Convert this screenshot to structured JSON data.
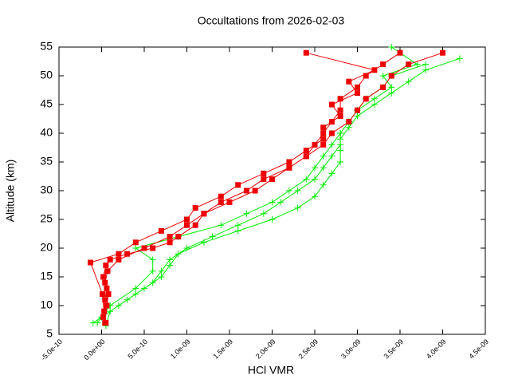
{
  "chart_data": {
    "type": "line",
    "title": "Occultations from 2026-02-03",
    "x_label": "HCl VMR",
    "y_label": "Altitude (km)",
    "xlim": [
      -5e-10,
      4.5e-09
    ],
    "ylim": [
      5,
      55
    ],
    "xticks": [
      {
        "value": -5e-10,
        "label": "-5.0e-10"
      },
      {
        "value": 0,
        "label": "0.0e+00"
      },
      {
        "value": 5e-10,
        "label": "5.0e-10"
      },
      {
        "value": 1e-09,
        "label": "1.0e-09"
      },
      {
        "value": 1.5e-09,
        "label": "1.5e-09"
      },
      {
        "value": 2e-09,
        "label": "2.0e-09"
      },
      {
        "value": 2.5e-09,
        "label": "2.5e-09"
      },
      {
        "value": 3e-09,
        "label": "3.0e-09"
      },
      {
        "value": 3.5e-09,
        "label": "3.5e-09"
      },
      {
        "value": 4e-09,
        "label": "4.0e-09"
      },
      {
        "value": 4.5e-09,
        "label": "4.5e-09"
      }
    ],
    "yticks": [
      5,
      10,
      15,
      20,
      25,
      30,
      35,
      40,
      45,
      50,
      55
    ],
    "series": [
      {
        "color": "#00ee00",
        "marker": "plus",
        "x": [
          -1e-10,
          0,
          2e-10,
          4e-10,
          6e-10,
          7e-10,
          8e-10,
          1e-09,
          1.3e-09,
          1.6e-09,
          1.9e-09,
          2.1e-09,
          2.3e-09,
          2.5e-09,
          2.6e-09,
          2.7e-09,
          2.8e-09,
          2.8e-09,
          2.9e-09,
          3e-09,
          3.1e-09,
          3.3e-09,
          3.4e-09,
          3.8e-09,
          null,
          5e-11,
          1e-10,
          3e-10,
          5e-10,
          7e-10,
          8e-10,
          9e-10,
          1.2e-09,
          1.6e-09,
          2e-09,
          2.3e-09,
          2.5e-09,
          2.6e-09,
          2.7e-09,
          2.8e-09,
          2.8e-09,
          2.8e-09,
          2.9e-09,
          3e-09,
          3.2e-09,
          3.4e-09,
          3.6e-09,
          3.8e-09,
          4.2e-09,
          null,
          -5e-11,
          1e-10,
          4e-10,
          6e-10,
          6e-10,
          4e-10,
          9e-10,
          1.4e-09,
          1.7e-09,
          2e-09,
          2.2e-09,
          2.4e-09,
          2.5e-09,
          2.6e-09,
          2.7e-09,
          2.8e-09,
          2.9e-09,
          3e-09,
          3.2e-09,
          3.4e-09,
          3.3e-09,
          3.7e-09,
          3.4e-09
        ],
        "values": [
          7,
          8,
          10,
          12,
          14,
          16,
          18,
          20,
          22,
          24,
          26,
          28,
          30,
          32,
          34,
          36,
          38,
          40,
          42,
          44,
          46,
          48,
          50,
          52,
          null,
          6.5,
          9,
          11,
          13,
          15,
          17,
          19,
          21,
          23,
          25,
          27,
          29,
          31,
          33,
          35,
          37,
          39,
          41,
          43,
          45,
          47,
          49,
          51,
          53,
          null,
          7,
          10,
          13,
          16,
          18,
          20,
          22,
          24,
          26,
          28,
          30,
          32,
          34,
          36,
          38,
          40,
          42,
          44,
          46,
          48,
          50,
          52,
          55
        ]
      },
      {
        "color": "#ee0000",
        "marker": "square",
        "x": [
          5e-11,
          3e-11,
          4e-11,
          6e-11,
          2e-11,
          5e-11,
          1e-10,
          3e-10,
          6e-10,
          8e-10,
          9e-10,
          1.1e-09,
          1.2e-09,
          1.4e-09,
          1.7e-09,
          1.9e-09,
          2.2e-09,
          2.4e-09,
          2.5e-09,
          2.6e-09,
          2.7e-09,
          2.8e-09,
          2.8e-09,
          3e-09,
          3.1e-09,
          3.3e-09,
          3.5e-09,
          null,
          2e-11,
          6e-11,
          8e-11,
          4e-11,
          7e-11,
          2e-10,
          5e-10,
          8e-10,
          1e-09,
          1.2e-09,
          1.5e-09,
          1.8e-09,
          2e-09,
          2.2e-09,
          2.4e-09,
          2.6e-09,
          2.7e-09,
          2.9e-09,
          3e-09,
          3.1e-09,
          3.3e-09,
          3.4e-09,
          3.6e-09,
          4e-09,
          null,
          4e-11,
          1e-11,
          -1.3e-10,
          2e-10,
          4e-10,
          7e-10,
          1e-09,
          1.1e-09,
          1.4e-09,
          1.6e-09,
          1.9e-09,
          2.2e-09,
          2.4e-09,
          2.6e-09,
          2.6e-09,
          2.8e-09,
          2.7e-09,
          3e-09,
          2.9e-09,
          3.2e-09,
          2.4e-09
        ],
        "values": [
          7,
          9,
          11,
          13,
          15,
          17,
          18,
          19,
          20,
          21,
          22,
          24,
          26,
          28,
          30,
          32,
          34,
          36,
          38,
          40,
          42,
          44,
          46,
          48,
          50,
          52,
          54,
          null,
          8,
          10,
          12,
          14,
          16,
          18,
          20,
          22,
          24,
          26,
          28,
          30,
          32,
          34,
          36,
          38,
          40,
          42,
          44,
          46,
          48,
          50,
          52,
          54,
          null,
          7,
          12,
          17.5,
          19,
          21,
          23,
          25,
          27,
          29,
          31,
          33,
          35,
          37,
          39,
          41,
          43,
          45,
          47,
          49,
          51,
          54
        ]
      }
    ]
  }
}
